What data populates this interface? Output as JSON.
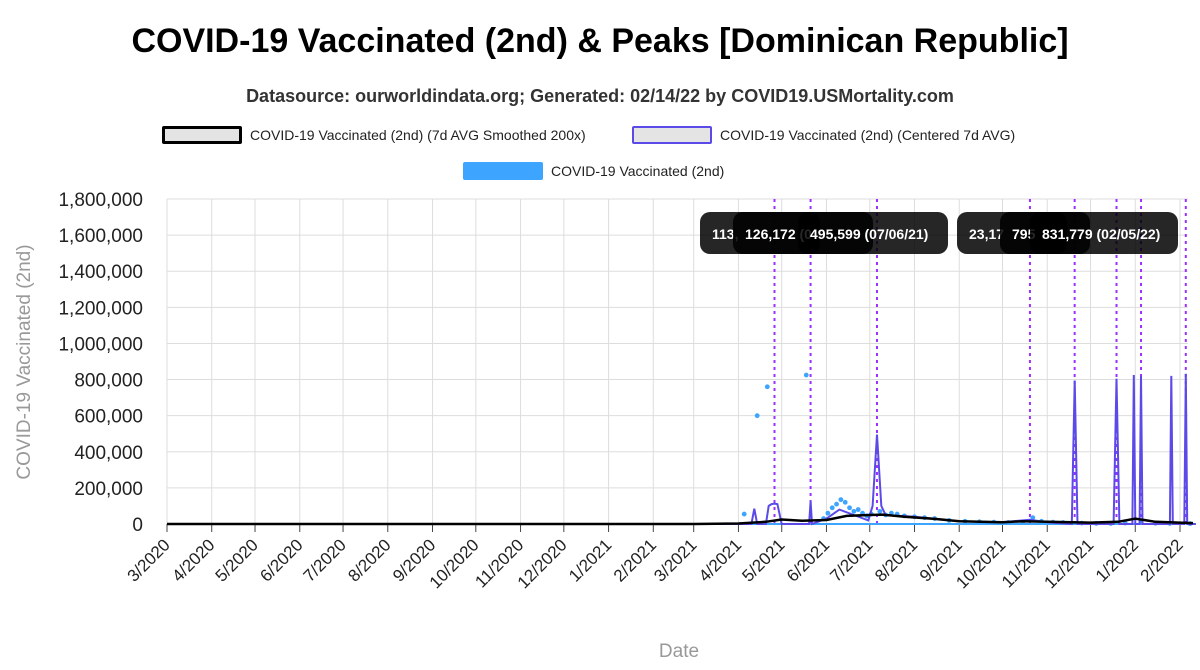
{
  "chart_data": {
    "type": "line",
    "title": "COVID-19 Vaccinated (2nd) & Peaks [Dominican Republic]",
    "subtitle": "Datasource: ourworldindata.org; Generated: 02/14/22 by COVID19.USMortality.com",
    "xlabel": "Date",
    "ylabel": "COVID-19 Vaccinated (2nd)",
    "ylim": [
      0,
      1800000
    ],
    "y_ticks": [
      0,
      200000,
      400000,
      600000,
      800000,
      1000000,
      1200000,
      1400000,
      1600000,
      1800000
    ],
    "y_tick_labels": [
      "0",
      "200,000",
      "400,000",
      "600,000",
      "800,000",
      "1,000,000",
      "1,200,000",
      "1,400,000",
      "1,600,000",
      "1,800,000"
    ],
    "x_tick_labels": [
      "3/2020",
      "4/2020",
      "5/2020",
      "6/2020",
      "7/2020",
      "8/2020",
      "9/2020",
      "10/2020",
      "11/2020",
      "12/2020",
      "1/2021",
      "2/2021",
      "3/2021",
      "4/2021",
      "5/2021",
      "6/2021",
      "7/2021",
      "8/2021",
      "9/2021",
      "10/2021",
      "11/2021",
      "12/2021",
      "1/2022",
      "2/2022"
    ],
    "grid": true,
    "legend": {
      "placement": "top",
      "entries": [
        {
          "name": "COVID-19 Vaccinated (2nd) (7d AVG Smoothed 200x)",
          "color": "#000000"
        },
        {
          "name": "COVID-19 Vaccinated (2nd) (Centered 7d AVG)",
          "color": "#5b4ae8"
        },
        {
          "name": "COVID-19 Vaccinated (2nd)",
          "color": "#3da5ff"
        }
      ]
    },
    "colors": {
      "smoothed": "#000000",
      "centered": "#5b4ae8",
      "daily": "#3da5ff",
      "peak_line": "#9b30ff",
      "grid": "#dddddd"
    },
    "series": [
      {
        "name": "COVID-19 Vaccinated (2nd) (7d AVG Smoothed 200x)",
        "x": [
          "2020-03-01",
          "2021-03-01",
          "2021-04-01",
          "2021-04-20",
          "2021-05-01",
          "2021-05-15",
          "2021-06-01",
          "2021-06-15",
          "2021-07-01",
          "2021-07-10",
          "2021-07-25",
          "2021-08-15",
          "2021-09-01",
          "2021-10-01",
          "2021-10-15",
          "2021-11-01",
          "2021-12-01",
          "2021-12-20",
          "2022-01-01",
          "2022-01-15",
          "2022-02-10"
        ],
        "y": [
          0,
          0,
          3000,
          12000,
          25000,
          18000,
          22000,
          45000,
          50000,
          52000,
          40000,
          28000,
          15000,
          10000,
          15000,
          12000,
          8000,
          12000,
          30000,
          12000,
          5000
        ]
      },
      {
        "name": "COVID-19 Vaccinated (2nd) (Centered 7d AVG)",
        "x": [
          "2020-03-01",
          "2021-03-01",
          "2021-04-10",
          "2021-04-12",
          "2021-04-14",
          "2021-04-20",
          "2021-04-22",
          "2021-04-24",
          "2021-04-26",
          "2021-04-28",
          "2021-05-01",
          "2021-05-20",
          "2021-05-21",
          "2021-05-22",
          "2021-06-01",
          "2021-06-10",
          "2021-06-20",
          "2021-06-30",
          "2021-07-03",
          "2021-07-06",
          "2021-07-09",
          "2021-07-12",
          "2021-08-01",
          "2021-09-01",
          "2021-10-01",
          "2021-10-20",
          "2021-11-01",
          "2021-11-18",
          "2021-11-20",
          "2021-11-22",
          "2021-12-17",
          "2021-12-19",
          "2021-12-21",
          "2021-12-30",
          "2021-12-31",
          "2022-01-01",
          "2022-01-03",
          "2022-01-04",
          "2022-01-05",
          "2022-01-06",
          "2022-01-07",
          "2022-01-25",
          "2022-01-26",
          "2022-01-27",
          "2022-02-03",
          "2022-02-04",
          "2022-02-05",
          "2022-02-06",
          "2022-02-07",
          "2022-02-12"
        ],
        "y": [
          0,
          0,
          0,
          85000,
          0,
          0,
          100000,
          110000,
          113000,
          110000,
          0,
          0,
          126172,
          0,
          30000,
          80000,
          50000,
          20000,
          100000,
          495599,
          100000,
          50000,
          40000,
          15000,
          10000,
          23175,
          10000,
          0,
          795000,
          0,
          0,
          805000,
          0,
          0,
          825000,
          0,
          0,
          0,
          820000,
          0,
          0,
          0,
          820000,
          0,
          0,
          0,
          831779,
          0,
          0,
          0
        ]
      },
      {
        "name": "COVID-19 Vaccinated (2nd)",
        "x": [
          "2021-04-05",
          "2021-04-14",
          "2021-04-21",
          "2021-05-18",
          "2021-05-30",
          "2021-06-02",
          "2021-06-05",
          "2021-06-08",
          "2021-06-11",
          "2021-06-14",
          "2021-06-17",
          "2021-06-20",
          "2021-06-23",
          "2021-06-26",
          "2021-06-29",
          "2021-07-02",
          "2021-07-08",
          "2021-07-12",
          "2021-07-16",
          "2021-07-20",
          "2021-07-25",
          "2021-08-01",
          "2021-08-08",
          "2021-08-15",
          "2021-08-25",
          "2021-09-05",
          "2021-09-15",
          "2021-09-25",
          "2021-10-05",
          "2021-10-15",
          "2021-10-22",
          "2021-10-28",
          "2021-11-05",
          "2021-11-12",
          "2021-11-25",
          "2021-12-05",
          "2021-12-15",
          "2021-12-25",
          "2022-01-05",
          "2022-01-15",
          "2022-01-25",
          "2022-02-08"
        ],
        "y": [
          55000,
          600000,
          760000,
          825000,
          30000,
          60000,
          90000,
          110000,
          135000,
          120000,
          90000,
          70000,
          80000,
          60000,
          45000,
          55000,
          70000,
          50000,
          60000,
          55000,
          45000,
          40000,
          35000,
          30000,
          20000,
          15000,
          12000,
          10000,
          8000,
          10000,
          35000,
          15000,
          10000,
          8000,
          5000,
          3000,
          3000,
          5000,
          8000,
          4000,
          3000,
          2000
        ]
      }
    ],
    "peaks": [
      {
        "date": "2021-04-26",
        "label": "113,"
      },
      {
        "date": "2021-05-21",
        "label": "126,172 (0"
      },
      {
        "date": "2021-07-06",
        "label": "495,599 (07/06/21)"
      },
      {
        "date": "2021-10-20",
        "label": "23,17"
      },
      {
        "date": "2021-11-20",
        "label": "795"
      },
      {
        "date": "2021-12-19",
        "label": ""
      },
      {
        "date": "2022-01-05",
        "label": ""
      },
      {
        "date": "2022-02-05",
        "label": "831,779 (02/05/22)"
      }
    ]
  }
}
